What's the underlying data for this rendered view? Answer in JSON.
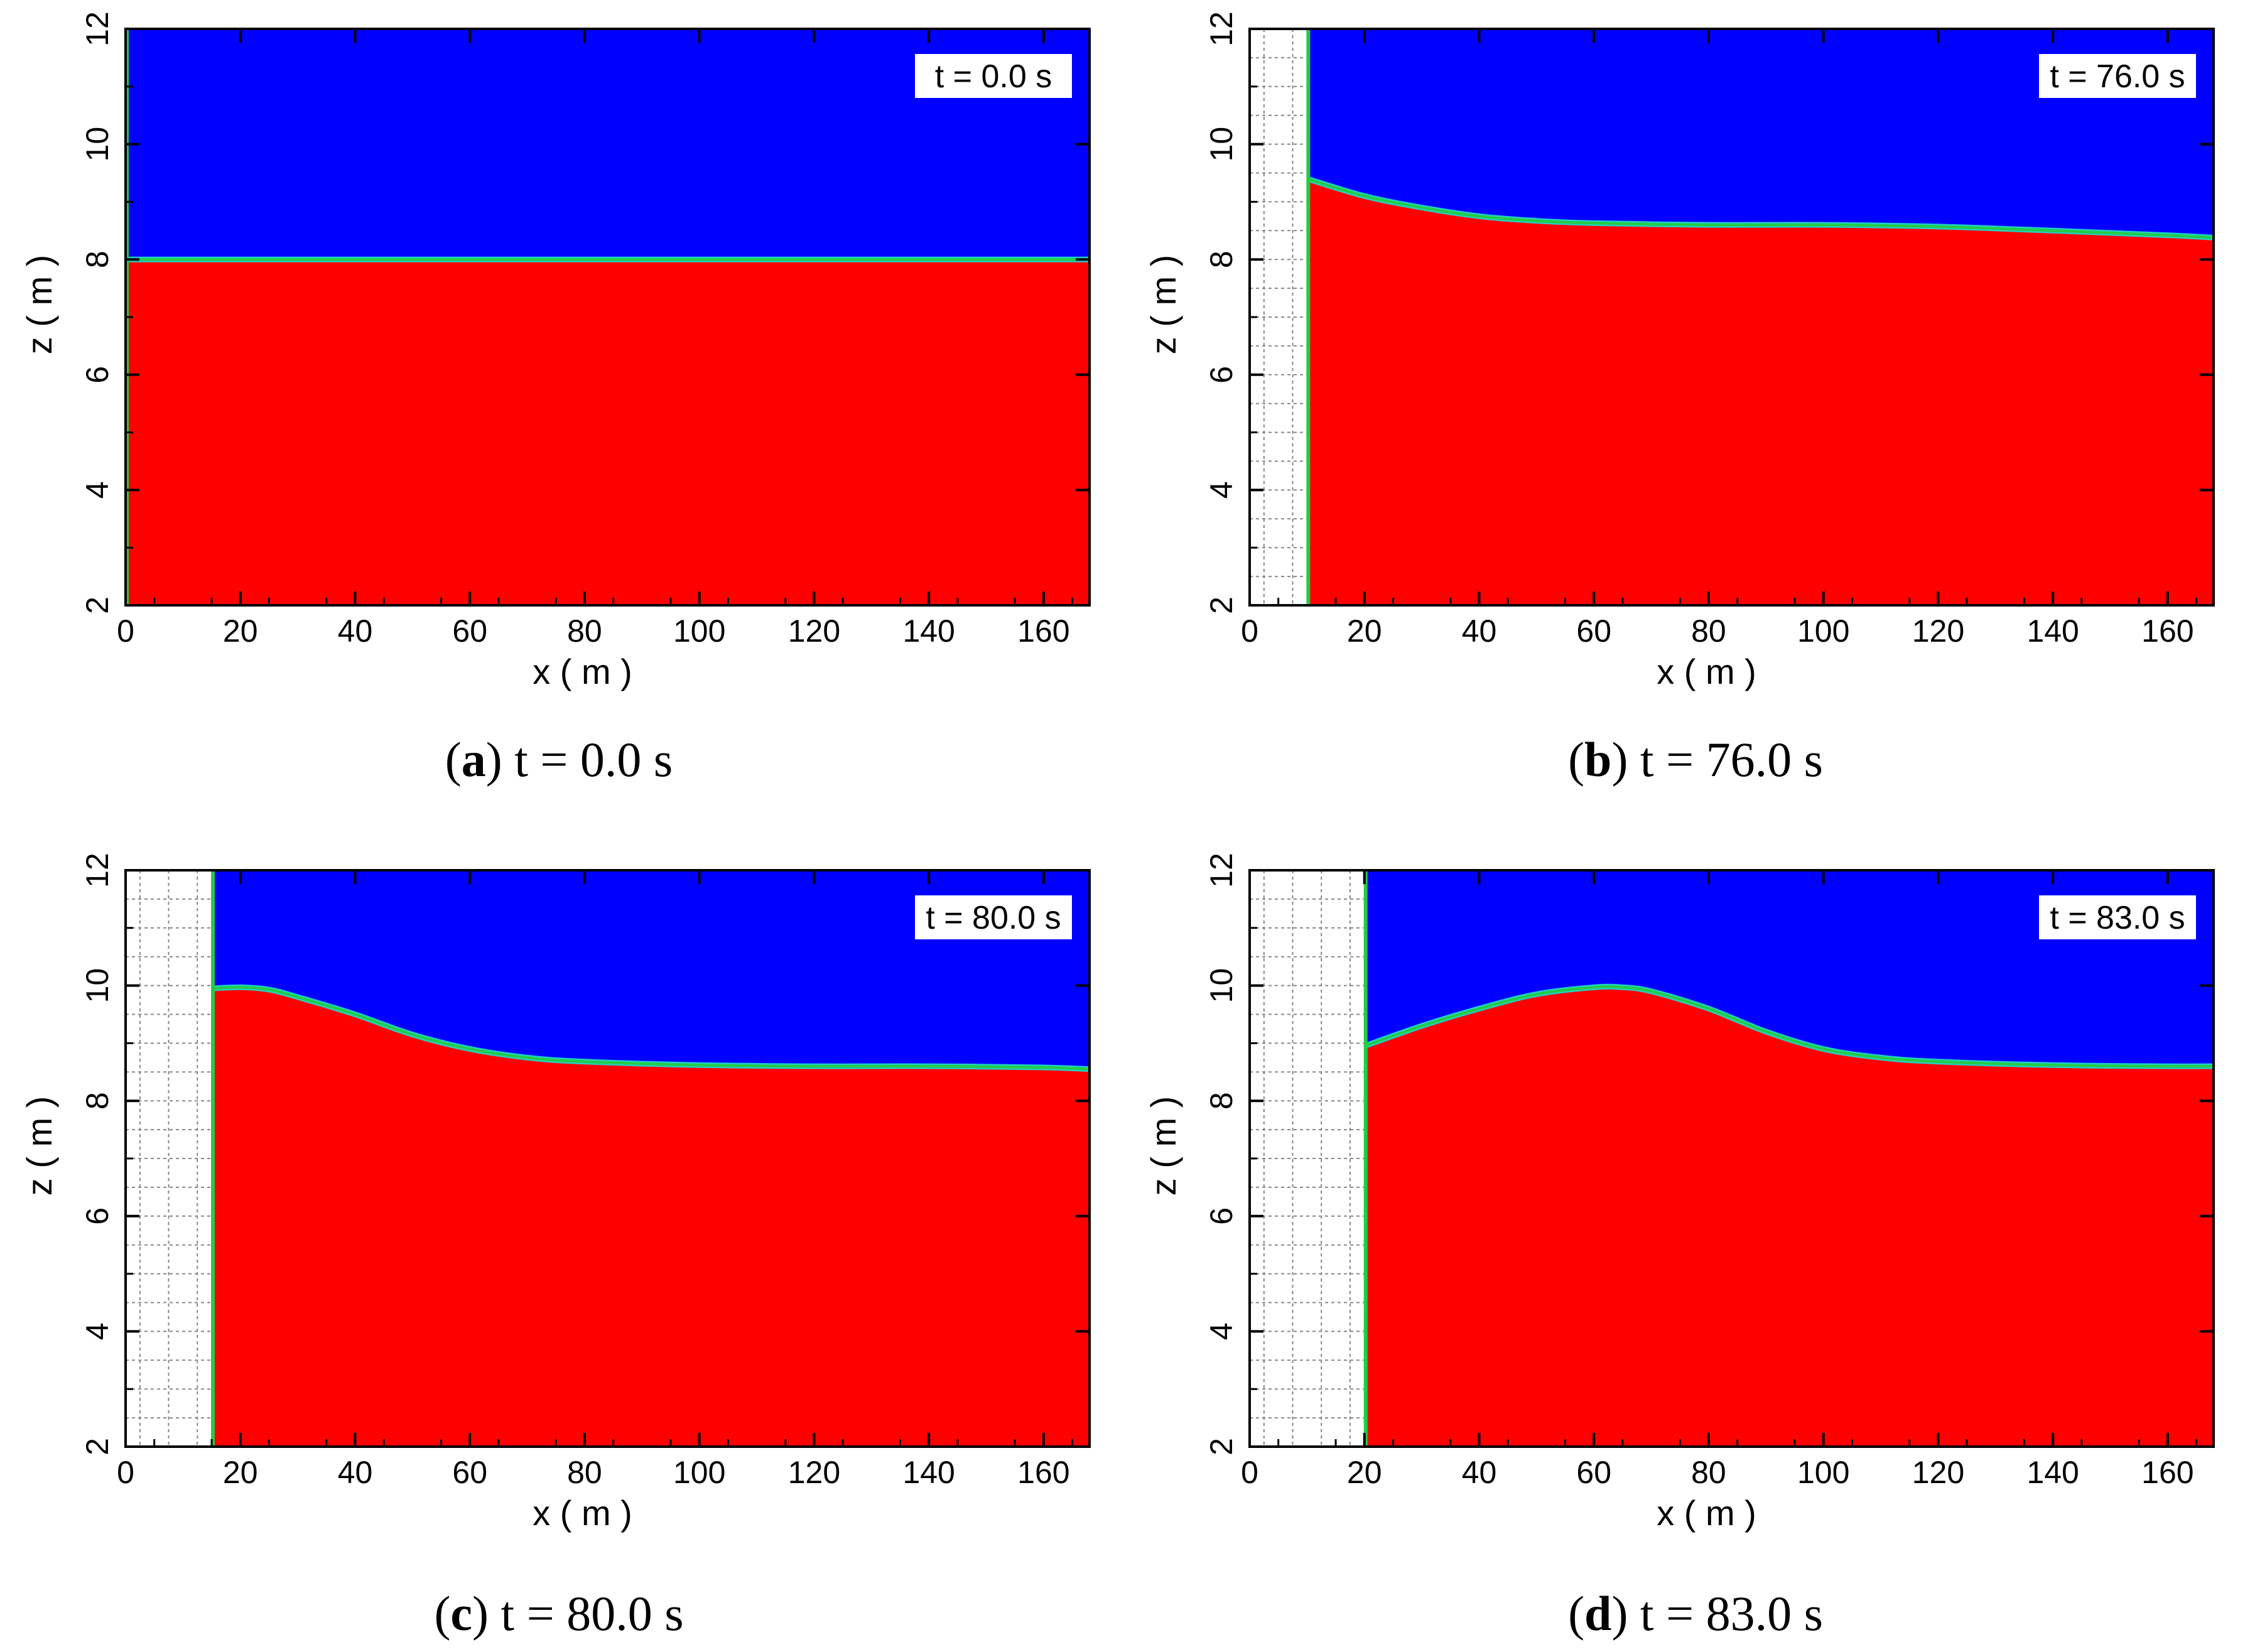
{
  "colors": {
    "water": "#ff0000",
    "air": "#0000ff",
    "interface": "#22cc44",
    "grid": "#888888",
    "frame": "#000000"
  },
  "chart_data": [
    {
      "type": "area",
      "panel_letter": "a",
      "caption": "t = 0.0 s",
      "time_label": "t = 0.0 s",
      "xlabel": "x ( m )",
      "ylabel": "z ( m )",
      "xlim": [
        0,
        168
      ],
      "ylim": [
        2,
        12
      ],
      "xticks": [
        0,
        20,
        40,
        60,
        80,
        100,
        120,
        140,
        160
      ],
      "yticks": [
        2,
        4,
        6,
        8,
        10,
        12
      ],
      "wall_x": 0,
      "surface": {
        "x": [
          0,
          168
        ],
        "z": [
          8.0,
          8.0
        ]
      }
    },
    {
      "type": "area",
      "panel_letter": "b",
      "caption": "t = 76.0 s",
      "time_label": "t = 76.0 s",
      "xlabel": "x ( m )",
      "ylabel": "z ( m )",
      "xlim": [
        0,
        168
      ],
      "ylim": [
        2,
        12
      ],
      "xticks": [
        0,
        20,
        40,
        60,
        80,
        100,
        120,
        140,
        160
      ],
      "yticks": [
        2,
        4,
        6,
        8,
        10,
        12
      ],
      "wall_x": 10,
      "surface": {
        "x": [
          10,
          20,
          30,
          40,
          50,
          60,
          80,
          100,
          120,
          140,
          160,
          168
        ],
        "z": [
          9.4,
          9.1,
          8.9,
          8.75,
          8.67,
          8.63,
          8.6,
          8.6,
          8.57,
          8.5,
          8.42,
          8.38
        ]
      }
    },
    {
      "type": "area",
      "panel_letter": "c",
      "caption": "t = 80.0 s",
      "time_label": "t = 80.0 s",
      "xlabel": "x ( m )",
      "ylabel": "z ( m )",
      "xlim": [
        0,
        168
      ],
      "ylim": [
        2,
        12
      ],
      "xticks": [
        0,
        20,
        40,
        60,
        80,
        100,
        120,
        140,
        160
      ],
      "yticks": [
        2,
        4,
        6,
        8,
        10,
        12
      ],
      "wall_x": 15,
      "surface": {
        "x": [
          15,
          20,
          25,
          30,
          40,
          50,
          60,
          70,
          80,
          100,
          120,
          140,
          160,
          168
        ],
        "z": [
          9.95,
          9.97,
          9.93,
          9.8,
          9.5,
          9.15,
          8.9,
          8.75,
          8.68,
          8.62,
          8.6,
          8.6,
          8.58,
          8.55
        ]
      }
    },
    {
      "type": "area",
      "panel_letter": "d",
      "caption": "t = 83.0 s",
      "time_label": "t = 83.0 s",
      "xlabel": "x ( m )",
      "ylabel": "z ( m )",
      "xlim": [
        0,
        168
      ],
      "ylim": [
        2,
        12
      ],
      "xticks": [
        0,
        20,
        40,
        60,
        80,
        100,
        120,
        140,
        160
      ],
      "yticks": [
        2,
        4,
        6,
        8,
        10,
        12
      ],
      "wall_x": 20,
      "surface": {
        "x": [
          20,
          30,
          40,
          50,
          60,
          65,
          70,
          80,
          90,
          100,
          110,
          120,
          140,
          160,
          168
        ],
        "z": [
          8.95,
          9.3,
          9.6,
          9.85,
          9.97,
          9.97,
          9.9,
          9.6,
          9.2,
          8.9,
          8.75,
          8.68,
          8.62,
          8.6,
          8.6
        ]
      }
    }
  ]
}
